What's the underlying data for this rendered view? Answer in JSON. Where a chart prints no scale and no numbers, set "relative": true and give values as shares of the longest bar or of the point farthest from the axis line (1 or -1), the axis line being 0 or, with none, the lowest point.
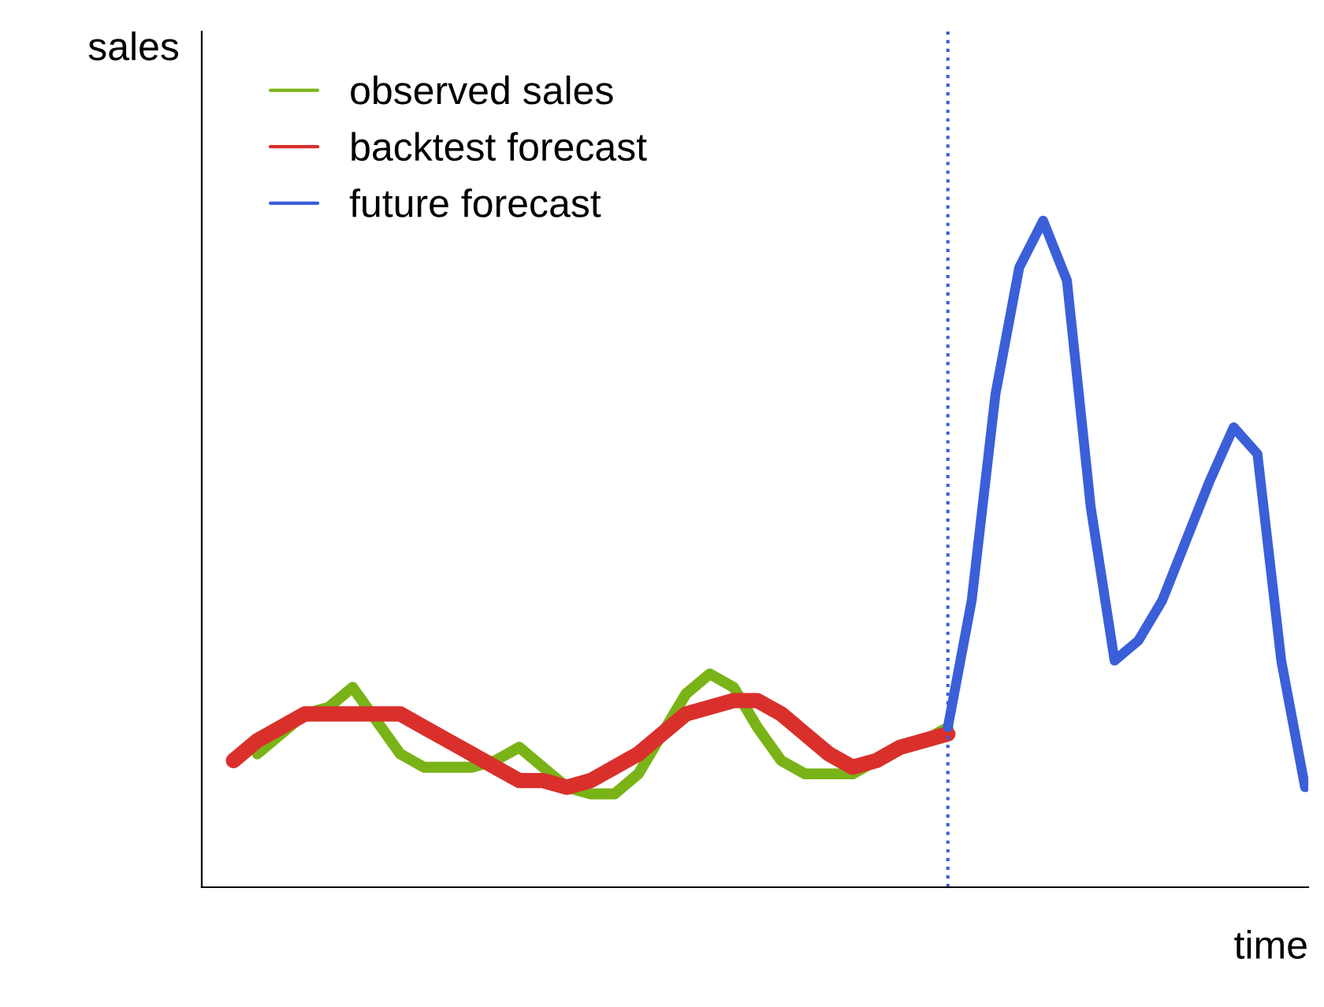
{
  "chart_data": {
    "type": "line",
    "relative": true,
    "xlabel": "time",
    "ylabel": "sales",
    "categories": [
      null,
      null,
      null,
      null,
      null,
      null,
      null,
      null,
      null,
      null,
      null,
      null,
      null,
      null,
      null,
      null,
      null,
      null,
      null,
      null,
      null,
      null,
      null,
      null,
      null,
      null,
      null,
      null,
      null,
      null,
      null,
      null,
      null,
      null,
      null,
      null,
      null,
      null,
      null,
      null,
      null,
      null,
      null,
      null,
      null,
      null
    ],
    "series": [
      {
        "name": "observed sales",
        "color": "#7ab317",
        "values": [
          null,
          0.2,
          0.23,
          0.26,
          0.27,
          0.3,
          0.25,
          0.2,
          0.18,
          0.18,
          0.18,
          0.19,
          0.21,
          0.18,
          0.15,
          0.14,
          0.14,
          0.17,
          0.23,
          0.29,
          0.32,
          0.3,
          0.24,
          0.19,
          0.17,
          0.17,
          0.17,
          0.19,
          0.21,
          0.22,
          0.24,
          null,
          null,
          null,
          null,
          null,
          null,
          null,
          null,
          null,
          null,
          null,
          null,
          null,
          null,
          null
        ]
      },
      {
        "name": "backtest forecast",
        "color": "#d9302c",
        "values": [
          0.19,
          0.22,
          0.24,
          0.26,
          0.26,
          0.26,
          0.26,
          0.26,
          0.24,
          0.22,
          0.2,
          0.18,
          0.16,
          0.16,
          0.15,
          0.16,
          0.18,
          0.2,
          0.23,
          0.26,
          0.27,
          0.28,
          0.28,
          0.26,
          0.23,
          0.2,
          0.18,
          0.19,
          0.21,
          0.22,
          0.23,
          null,
          null,
          null,
          null,
          null,
          null,
          null,
          null,
          null,
          null,
          null,
          null,
          null,
          null,
          null
        ]
      },
      {
        "name": "future forecast",
        "color": "#3b5fd9",
        "values": [
          null,
          null,
          null,
          null,
          null,
          null,
          null,
          null,
          null,
          null,
          null,
          null,
          null,
          null,
          null,
          null,
          null,
          null,
          null,
          null,
          null,
          null,
          null,
          null,
          null,
          null,
          null,
          null,
          null,
          null,
          0.24,
          0.43,
          0.74,
          0.93,
          1.0,
          0.91,
          0.57,
          0.34,
          0.37,
          0.43,
          0.52,
          0.61,
          0.69,
          0.65,
          0.34,
          0.15
        ]
      }
    ],
    "legend": "top left"
  }
}
